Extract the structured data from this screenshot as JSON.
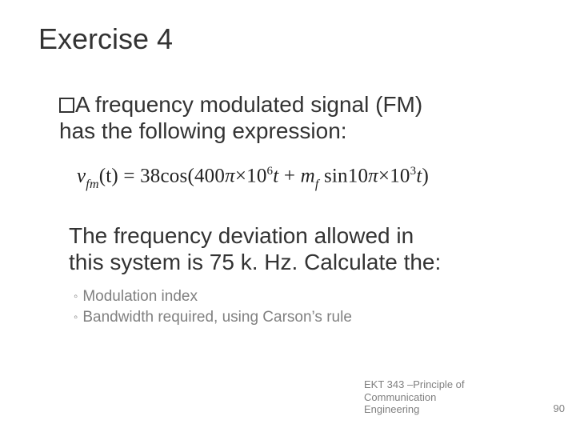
{
  "slide": {
    "title": "Exercise 4",
    "intro_first": "A frequency modulated signal (FM)",
    "intro_rest": "has the following expression:",
    "formula": {
      "lhs_v": "v",
      "lhs_sub": "fm",
      "lhs_t": "(t)",
      "eq": " = ",
      "amp": "38",
      "cos": "cos(",
      "carrier_a": "400",
      "pi1": "π",
      "times1": "×",
      "exp1_base": "10",
      "exp1_sup": "6",
      "t1": "t",
      "plus": " + ",
      "mf_m": "m",
      "mf_sub": "f",
      "sp": " ",
      "sin": "sin",
      "mod_a": "10",
      "pi2": "π",
      "times2": "×",
      "exp2_base": "10",
      "exp2_sup": "3",
      "t2": "t",
      "close": ")"
    },
    "question_l1": "The frequency deviation allowed in",
    "question_l2": "this system is 75 k. Hz. Calculate the:",
    "subitems": [
      "Modulation index",
      "Bandwidth required, using Carson’s rule"
    ],
    "footer_l1": "EKT 343 –Principle of Communication",
    "footer_l2": "Engineering",
    "page_number": "90"
  },
  "colors": {
    "text_main": "#333333",
    "text_muted": "#808080",
    "background": "#ffffff"
  }
}
